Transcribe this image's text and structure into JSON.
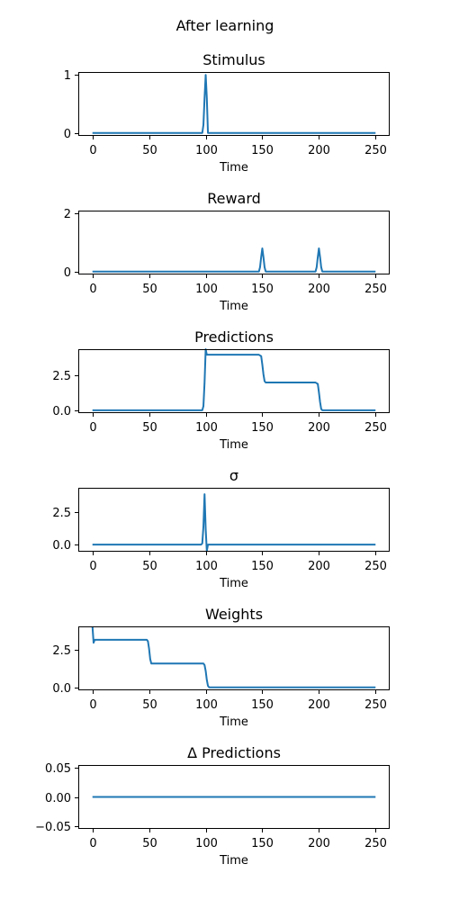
{
  "figure": {
    "title": "After learning",
    "series_color": "#1f77b4"
  },
  "chart_data": [
    {
      "type": "line",
      "title": "Stimulus",
      "xlabel": "Time",
      "ylabel": "",
      "xlim": [
        -12.5,
        262.5
      ],
      "ylim": [
        -0.05,
        1.05
      ],
      "xticks": [
        0,
        50,
        100,
        150,
        200,
        250
      ],
      "yticks": [
        0,
        1
      ],
      "ytick_labels": [
        "0",
        "1"
      ],
      "grid": false,
      "series": [
        {
          "x": [
            0,
            97,
            98,
            99,
            100,
            101,
            102,
            250
          ],
          "y": [
            0,
            0,
            0.14,
            0.6,
            1.0,
            0.6,
            0,
            0
          ]
        }
      ]
    },
    {
      "type": "line",
      "title": "Reward",
      "xlabel": "Time",
      "ylabel": "",
      "xlim": [
        -12.5,
        262.5
      ],
      "ylim": [
        -0.1,
        2.1
      ],
      "xticks": [
        0,
        50,
        100,
        150,
        200,
        250
      ],
      "yticks": [
        0,
        2
      ],
      "ytick_labels": [
        "0",
        "2"
      ],
      "grid": false,
      "series": [
        {
          "x": [
            0,
            147,
            148,
            149,
            150,
            151,
            152,
            153,
            197,
            198,
            199,
            200,
            201,
            202,
            203,
            250
          ],
          "y": [
            0,
            0,
            0.15,
            0.5,
            0.8,
            0.5,
            0.15,
            0,
            0,
            0.15,
            0.5,
            0.8,
            0.5,
            0.15,
            0,
            0
          ]
        }
      ]
    },
    {
      "type": "line",
      "title": "Predictions",
      "xlabel": "Time",
      "ylabel": "",
      "xlim": [
        -12.5,
        262.5
      ],
      "ylim": [
        -0.2,
        4.4
      ],
      "xticks": [
        0,
        50,
        100,
        150,
        200,
        250
      ],
      "yticks": [
        0,
        2.5
      ],
      "ytick_labels": [
        "0.0",
        "2.5"
      ],
      "grid": false,
      "series": [
        {
          "x": [
            0,
            97,
            98,
            99,
            100,
            101,
            102,
            147,
            149,
            150,
            151,
            152,
            153,
            197,
            199,
            200,
            201,
            202,
            203,
            250
          ],
          "y": [
            0,
            0,
            0.3,
            2.0,
            4.4,
            4.0,
            4.0,
            4.0,
            3.9,
            3.3,
            2.6,
            2.1,
            2.0,
            2.0,
            1.9,
            1.3,
            0.6,
            0.1,
            0,
            0
          ]
        }
      ]
    },
    {
      "type": "line",
      "title": "σ",
      "xlabel": "Time",
      "ylabel": "",
      "xlim": [
        -12.5,
        262.5
      ],
      "ylim": [
        -0.55,
        4.4
      ],
      "xticks": [
        0,
        50,
        100,
        150,
        200,
        250
      ],
      "yticks": [
        0,
        2.5
      ],
      "ytick_labels": [
        "0.0",
        "2.5"
      ],
      "grid": false,
      "series": [
        {
          "x": [
            0,
            96,
            97,
            98,
            99,
            100,
            101,
            102,
            250
          ],
          "y": [
            0,
            0,
            0.1,
            1.4,
            3.9,
            1.2,
            -0.5,
            0,
            0
          ]
        }
      ]
    },
    {
      "type": "line",
      "title": "Weights",
      "xlabel": "Time",
      "ylabel": "",
      "xlim": [
        -12.5,
        262.5
      ],
      "ylim": [
        -0.2,
        4.1
      ],
      "xticks": [
        0,
        50,
        100,
        150,
        200,
        250
      ],
      "yticks": [
        0,
        2.5
      ],
      "ytick_labels": [
        "0.0",
        "2.5"
      ],
      "grid": false,
      "series": [
        {
          "x": [
            0,
            1,
            2,
            48,
            49,
            50,
            51,
            52,
            53,
            98,
            99,
            100,
            101,
            102,
            103,
            250
          ],
          "y": [
            4.1,
            3.0,
            3.2,
            3.2,
            3.1,
            2.6,
            1.9,
            1.6,
            1.6,
            1.6,
            1.5,
            1.1,
            0.5,
            0.1,
            0,
            0
          ]
        }
      ]
    },
    {
      "type": "line",
      "title": "Δ Predictions",
      "xlabel": "Time",
      "ylabel": "",
      "xlim": [
        -12.5,
        262.5
      ],
      "ylim": [
        -0.055,
        0.055
      ],
      "xticks": [
        0,
        50,
        100,
        150,
        200,
        250
      ],
      "yticks": [
        0.05,
        0,
        -0.05
      ],
      "ytick_labels": [
        "0.05",
        "0.00",
        "−0.05"
      ],
      "grid": false,
      "series": [
        {
          "x": [
            0,
            250
          ],
          "y": [
            0,
            0
          ]
        }
      ]
    }
  ]
}
